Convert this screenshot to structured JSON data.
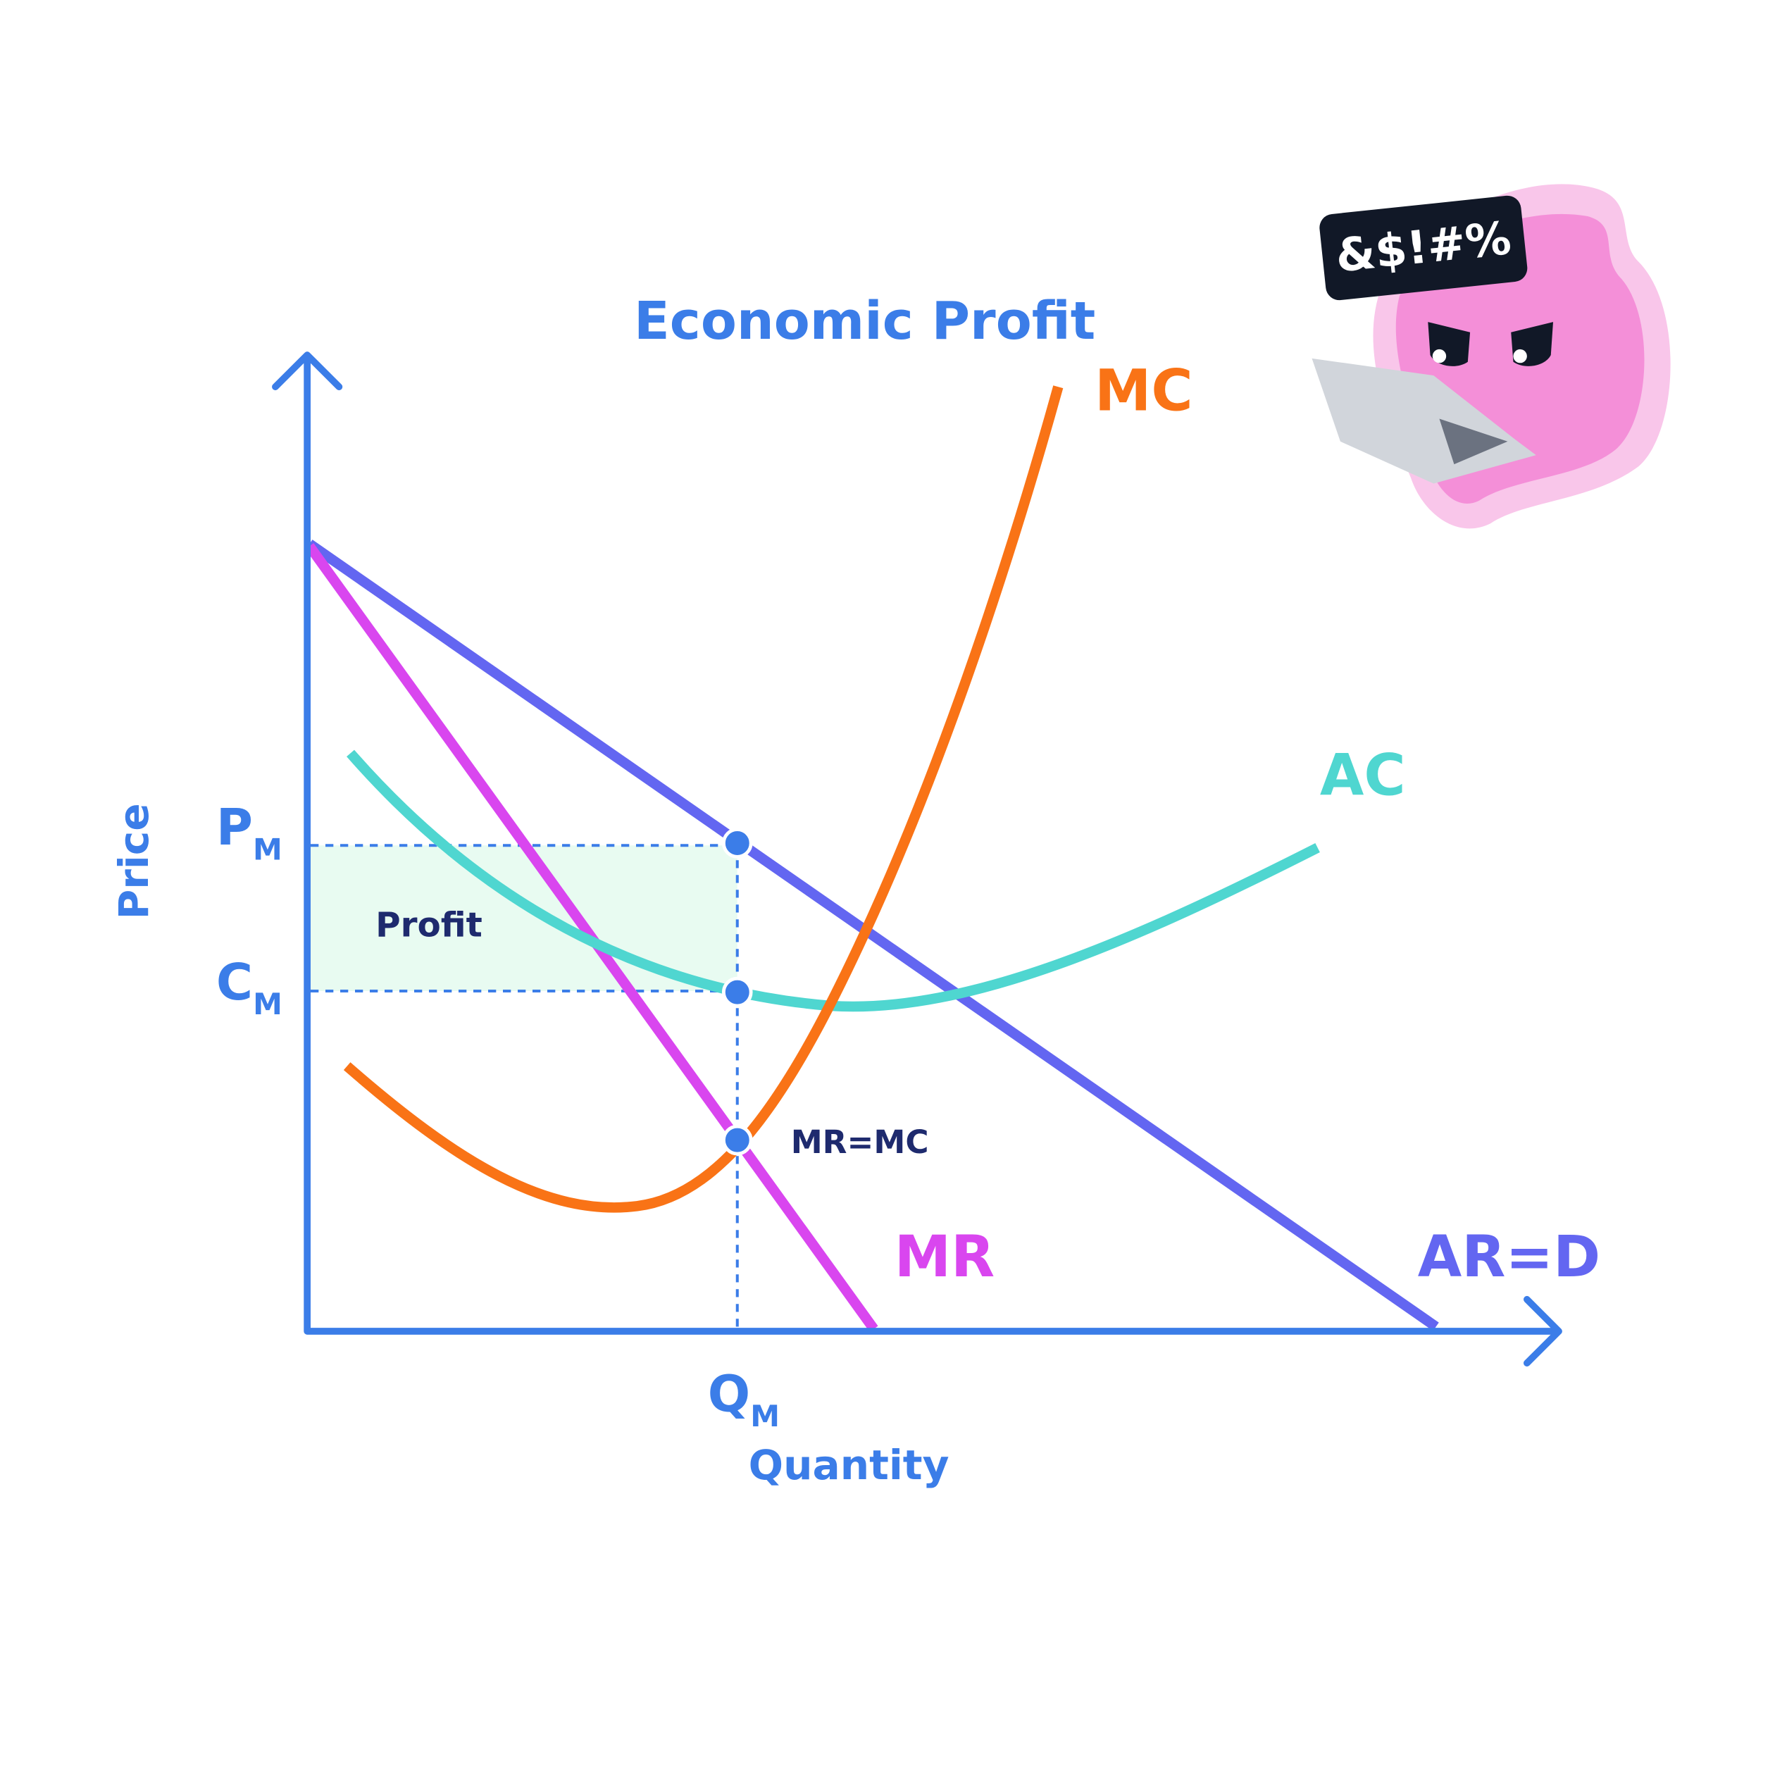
{
  "title": "Economic Profit",
  "axes": {
    "y": "Price",
    "x": "Quantity"
  },
  "curves": {
    "mc": "MC",
    "ac": "AC",
    "mr": "MR",
    "demand": "AR=D"
  },
  "levels": {
    "price": {
      "main": "P",
      "sub": "M"
    },
    "cost": {
      "main": "C",
      "sub": "M"
    },
    "quantity": {
      "main": "Q",
      "sub": "M"
    }
  },
  "regions": {
    "profit": "Profit"
  },
  "points": {
    "equilibrium": "MR=MC"
  },
  "mascot": {
    "speech": "&$!#%"
  }
}
